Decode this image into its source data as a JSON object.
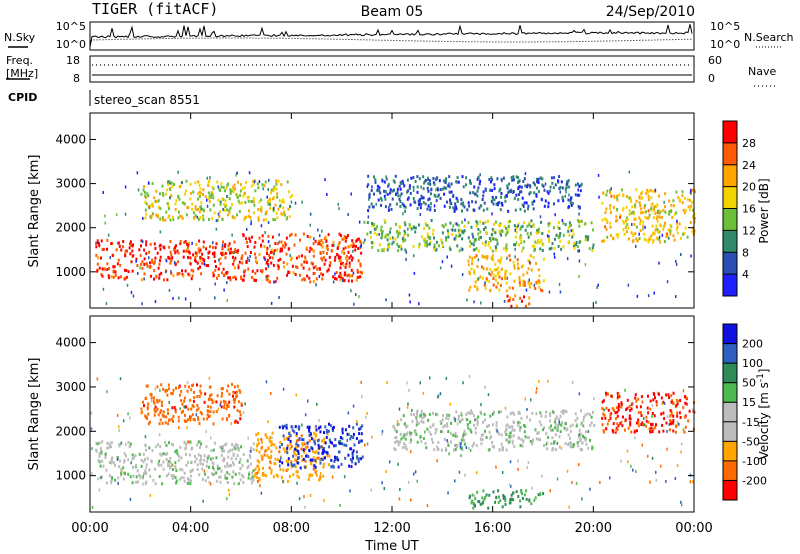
{
  "header": {
    "radar": "TIGER (fitACF)",
    "beam": "Beam 05",
    "date": "24/Sep/2010"
  },
  "strip_labels": {
    "nsky": "N.Sky",
    "nsearch": "N.Search",
    "freq_line1": "Freq.",
    "freq_line2": "[MHz]",
    "nave": "Nave",
    "cpid": "CPID",
    "cpid_value": "stereo_scan 8551"
  },
  "strip_ticks": {
    "noise_left": [
      "10^5",
      "10^0"
    ],
    "noise_right": [
      "10^5",
      "10^0"
    ],
    "freq_left": [
      "18",
      "8"
    ],
    "nave_right": [
      "60",
      "0"
    ]
  },
  "colors": {
    "power_scale": [
      "#1e1eff",
      "#2a4fb4",
      "#2f8a6e",
      "#6cbf3a",
      "#f4d400",
      "#ffa500",
      "#ff5a00",
      "#ff0000"
    ],
    "velocity_scale": [
      "#ff0000",
      "#ff6a00",
      "#ffa500",
      "#bcbcbc",
      "#bcbcbc",
      "#4fb84f",
      "#2e8b57",
      "#2f5fc0",
      "#1010e0"
    ]
  },
  "chart_data": [
    {
      "type": "heatmap",
      "panel": "power",
      "title": "",
      "xlabel": "Time UT",
      "ylabel": "Slant Range [km]",
      "x_ticks": [
        "00:00",
        "04:00",
        "08:00",
        "12:00",
        "16:00",
        "20:00",
        "00:00"
      ],
      "xlim_hours": [
        0,
        24
      ],
      "y_ticks": [
        1000,
        2000,
        3000,
        4000
      ],
      "ylim": [
        180,
        4600
      ],
      "colorbar": {
        "label": "Power [dB]",
        "ticks": [
          "28",
          "24",
          "20",
          "16",
          "12",
          "8",
          "4"
        ],
        "range": [
          0,
          30
        ]
      },
      "regions": [
        {
          "t": [
            0.2,
            6.0
          ],
          "r": [
            850,
            1750
          ],
          "value": 27
        },
        {
          "t": [
            6.0,
            10.8
          ],
          "r": [
            800,
            1900
          ],
          "value": 26
        },
        {
          "t": [
            10.8,
            20.0
          ],
          "r": [
            1500,
            2200
          ],
          "value": 13
        },
        {
          "t": [
            2.0,
            8.0
          ],
          "r": [
            2200,
            3100
          ],
          "value": 16
        },
        {
          "t": [
            15.0,
            18.0
          ],
          "r": [
            600,
            1400
          ],
          "value": 20
        },
        {
          "t": [
            16.5,
            17.5
          ],
          "r": [
            250,
            500
          ],
          "value": 24
        },
        {
          "t": [
            20.3,
            24.0
          ],
          "r": [
            1700,
            2900
          ],
          "value": 18
        },
        {
          "t": [
            11.0,
            19.5
          ],
          "r": [
            2400,
            3200
          ],
          "value": 6
        }
      ]
    },
    {
      "type": "heatmap",
      "panel": "velocity",
      "title": "",
      "xlabel": "Time UT",
      "ylabel": "Slant Range [km]",
      "x_ticks": [
        "00:00",
        "04:00",
        "08:00",
        "12:00",
        "16:00",
        "20:00",
        "00:00"
      ],
      "xlim_hours": [
        0,
        24
      ],
      "y_ticks": [
        1000,
        2000,
        3000,
        4000
      ],
      "ylim": [
        180,
        4600
      ],
      "colorbar": {
        "label": "Velocity [m s^-1]",
        "ticks": [
          "200",
          "100",
          "50",
          "15",
          "-15",
          "-50",
          "-100",
          "-200"
        ],
        "range": [
          -250,
          250
        ]
      },
      "regions": [
        {
          "t": [
            0.2,
            6.5
          ],
          "r": [
            850,
            1800
          ],
          "value": 0
        },
        {
          "t": [
            6.5,
            9.5
          ],
          "r": [
            900,
            2000
          ],
          "value": -80
        },
        {
          "t": [
            7.5,
            10.8
          ],
          "r": [
            1200,
            2200
          ],
          "value": 200
        },
        {
          "t": [
            2.0,
            6.0
          ],
          "r": [
            2200,
            3100
          ],
          "value": -180
        },
        {
          "t": [
            12.0,
            20.0
          ],
          "r": [
            1600,
            2500
          ],
          "value": 0
        },
        {
          "t": [
            15.0,
            18.0
          ],
          "r": [
            300,
            700
          ],
          "value": 60
        },
        {
          "t": [
            20.3,
            24.0
          ],
          "r": [
            2000,
            2900
          ],
          "value": -200
        }
      ]
    }
  ]
}
